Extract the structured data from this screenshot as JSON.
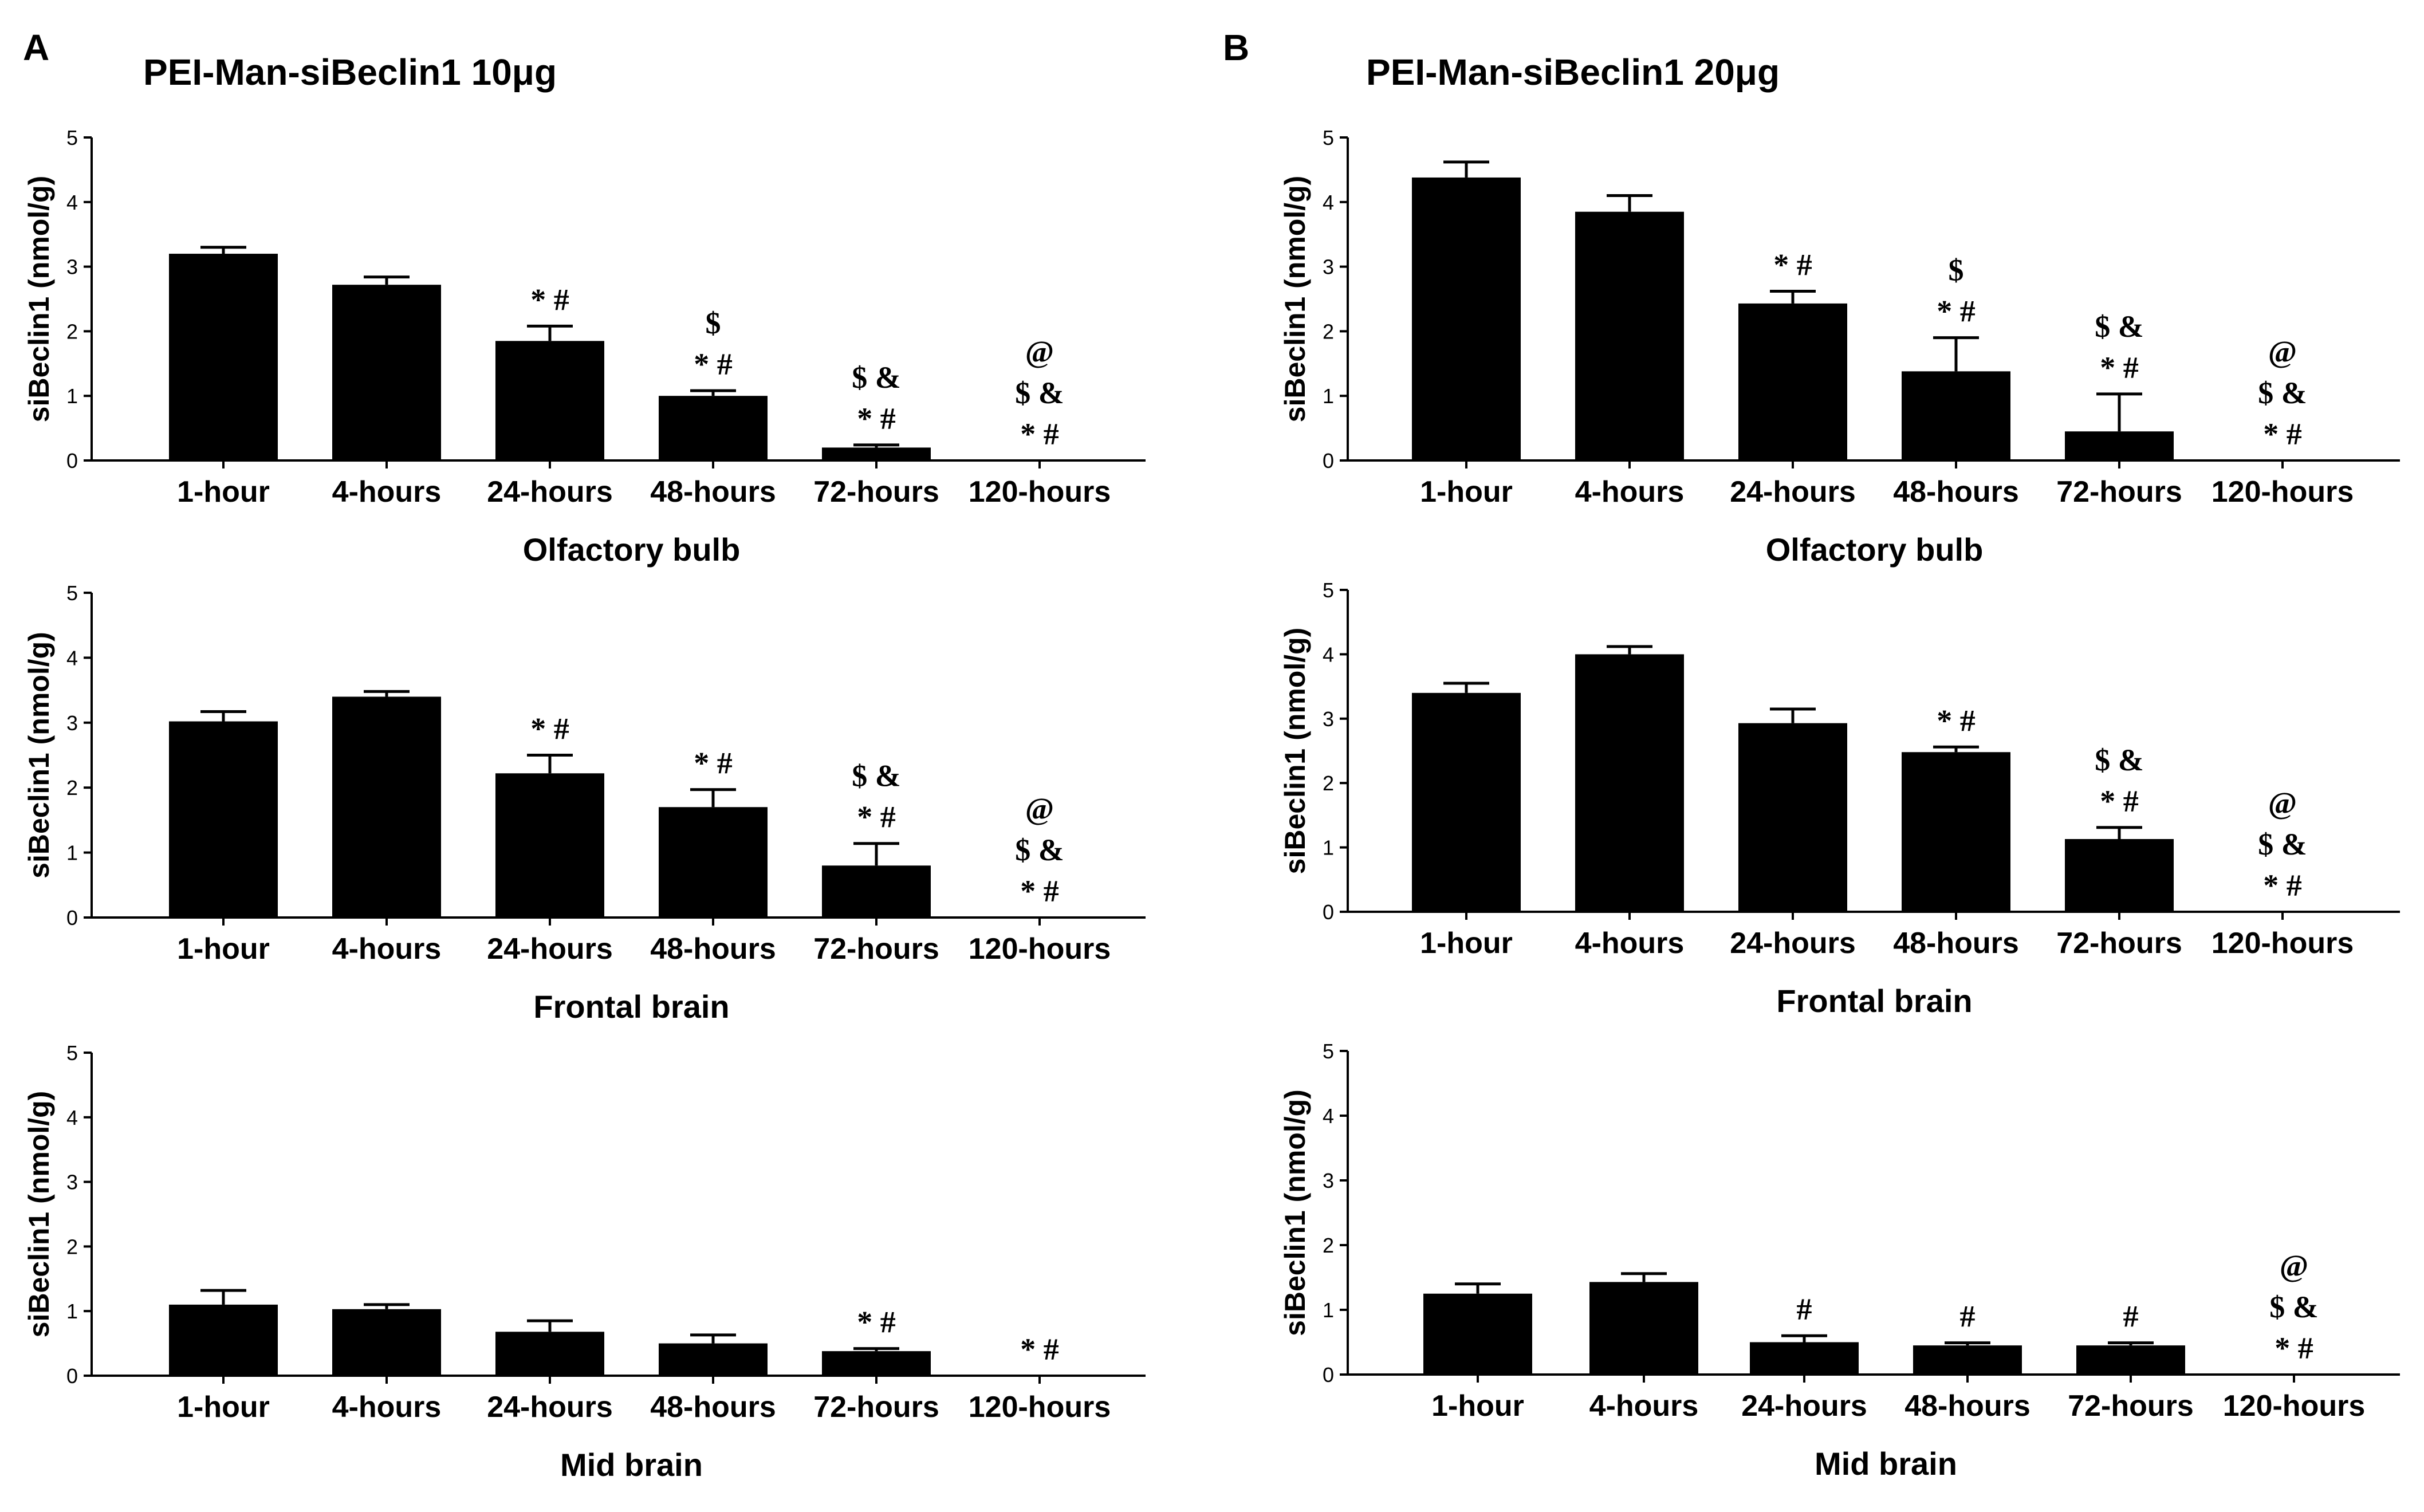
{
  "figure": {
    "panels": [
      {
        "letter": "A",
        "title": "PEI-Man-siBeclin1 10μg"
      },
      {
        "letter": "B",
        "title": "PEI-Man-siBeclin1 20μg"
      }
    ]
  },
  "chart_data": [
    {
      "type": "bar",
      "panel": "A",
      "region": "Olfactory bulb",
      "categories": [
        "1-hour",
        "4-hours",
        "24-hours",
        "48-hours",
        "72-hours",
        "120-hours"
      ],
      "values": [
        3.2,
        2.72,
        1.85,
        1.0,
        0.2,
        0
      ],
      "errors": [
        0.1,
        0.12,
        0.23,
        0.08,
        0.04,
        0
      ],
      "annotations": [
        [],
        [],
        [
          "* #"
        ],
        [
          "$",
          "* #"
        ],
        [
          "$ &",
          "* #"
        ],
        [
          "@",
          "$ &",
          "* #"
        ]
      ],
      "xlabel": "Olfactory bulb",
      "ylabel": "siBeclin1 (nmol/g)",
      "ylim": [
        0,
        5
      ],
      "yticks": [
        "0",
        "1",
        "2",
        "3",
        "4",
        "5"
      ]
    },
    {
      "type": "bar",
      "panel": "A",
      "region": "Frontal brain",
      "categories": [
        "1-hour",
        "4-hours",
        "24-hours",
        "48-hours",
        "72-hours",
        "120-hours"
      ],
      "values": [
        3.02,
        3.4,
        2.22,
        1.7,
        0.8,
        0
      ],
      "errors": [
        0.15,
        0.08,
        0.28,
        0.27,
        0.34,
        0
      ],
      "annotations": [
        [],
        [],
        [
          "* #"
        ],
        [
          "* #"
        ],
        [
          "$ &",
          "* #"
        ],
        [
          "@",
          "$ &",
          "* #"
        ]
      ],
      "xlabel": "Frontal brain",
      "ylabel": "siBeclin1 (nmol/g)",
      "ylim": [
        0,
        5
      ],
      "yticks": [
        "0",
        "1",
        "2",
        "3",
        "4",
        "5"
      ]
    },
    {
      "type": "bar",
      "panel": "A",
      "region": "Mid brain",
      "categories": [
        "1-hour",
        "4-hours",
        "24-hours",
        "48-hours",
        "72-hours",
        "120-hours"
      ],
      "values": [
        1.1,
        1.03,
        0.68,
        0.5,
        0.38,
        0
      ],
      "errors": [
        0.22,
        0.07,
        0.17,
        0.13,
        0.04,
        0
      ],
      "annotations": [
        [],
        [],
        [],
        [],
        [
          "* #"
        ],
        [
          "* #"
        ]
      ],
      "xlabel": "Mid brain",
      "ylabel": "siBeclin1 (nmol/g)",
      "ylim": [
        0,
        5
      ],
      "yticks": [
        "0",
        "1",
        "2",
        "3",
        "4",
        "5"
      ]
    },
    {
      "type": "bar",
      "panel": "B",
      "region": "Olfactory bulb",
      "categories": [
        "1-hour",
        "4-hours",
        "24-hours",
        "48-hours",
        "72-hours",
        "120-hours"
      ],
      "values": [
        4.38,
        3.85,
        2.43,
        1.38,
        0.45,
        0
      ],
      "errors": [
        0.24,
        0.25,
        0.19,
        0.52,
        0.58,
        0
      ],
      "annotations": [
        [],
        [],
        [
          "* #"
        ],
        [
          "$",
          "* #"
        ],
        [
          "$ &",
          "* #"
        ],
        [
          "@",
          "$ &",
          "* #"
        ]
      ],
      "xlabel": "Olfactory bulb",
      "ylabel": "siBeclin1 (nmol/g)",
      "ylim": [
        0,
        5
      ],
      "yticks": [
        "0",
        "1",
        "2",
        "3",
        "4",
        "5"
      ]
    },
    {
      "type": "bar",
      "panel": "B",
      "region": "Frontal brain",
      "categories": [
        "1-hour",
        "4-hours",
        "24-hours",
        "48-hours",
        "72-hours",
        "120-hours"
      ],
      "values": [
        3.4,
        4.0,
        2.93,
        2.48,
        1.13,
        0
      ],
      "errors": [
        0.15,
        0.12,
        0.22,
        0.08,
        0.18,
        0
      ],
      "annotations": [
        [],
        [],
        [],
        [
          "* #"
        ],
        [
          "$ &",
          "* #"
        ],
        [
          "@",
          "$ &",
          "* #"
        ]
      ],
      "xlabel": "Frontal brain",
      "ylabel": "siBeclin1 (nmol/g)",
      "ylim": [
        0,
        5
      ],
      "yticks": [
        "0",
        "1",
        "2",
        "3",
        "4",
        "5"
      ]
    },
    {
      "type": "bar",
      "panel": "B",
      "region": "Mid brain",
      "categories": [
        "1-hour",
        "4-hours",
        "24-hours",
        "48-hours",
        "72-hours",
        "120-hours"
      ],
      "values": [
        1.25,
        1.43,
        0.5,
        0.45,
        0.45,
        0
      ],
      "errors": [
        0.15,
        0.13,
        0.1,
        0.04,
        0.04,
        0
      ],
      "annotations": [
        [],
        [],
        [
          "#"
        ],
        [
          "#"
        ],
        [
          "#"
        ],
        [
          "@",
          "$ &",
          "* #"
        ]
      ],
      "xlabel": "Mid brain",
      "ylabel": "siBeclin1 (nmol/g)",
      "ylim": [
        0,
        5
      ],
      "yticks": [
        "0",
        "1",
        "2",
        "3",
        "4",
        "5"
      ]
    }
  ]
}
